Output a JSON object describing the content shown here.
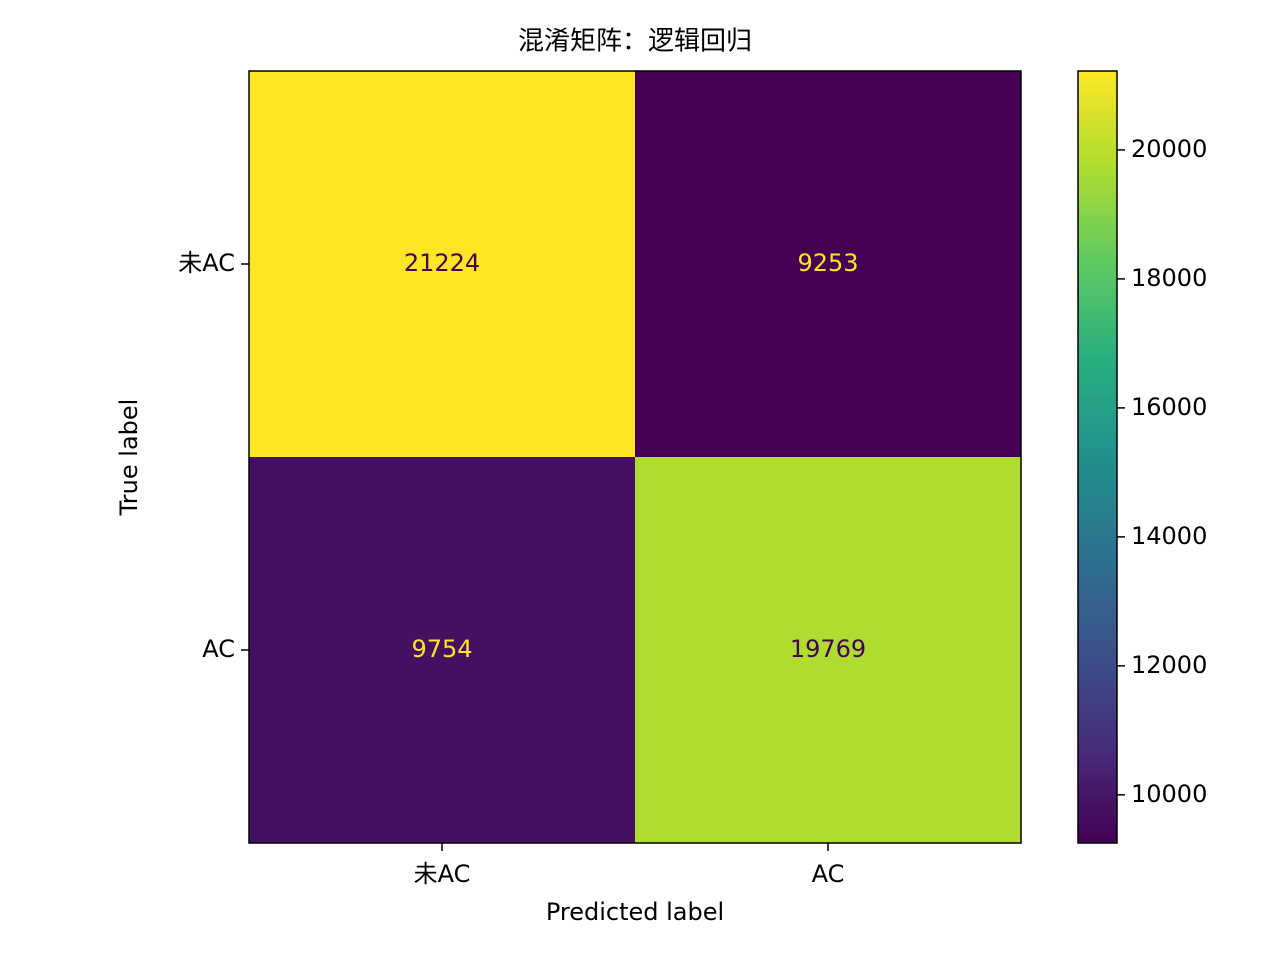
{
  "chart_data": {
    "type": "heatmap",
    "title": "混淆矩阵：逻辑回归",
    "x_label": "Predicted label",
    "y_label": "True label",
    "x_categories": [
      "未AC",
      "AC"
    ],
    "y_categories": [
      "未AC",
      "AC"
    ],
    "values": [
      [
        21224,
        9253
      ],
      [
        9754,
        19769
      ]
    ],
    "colormap": "viridis",
    "zlim": [
      9253,
      21224
    ],
    "zticks": [
      10000,
      12000,
      14000,
      16000,
      18000,
      20000
    ]
  }
}
